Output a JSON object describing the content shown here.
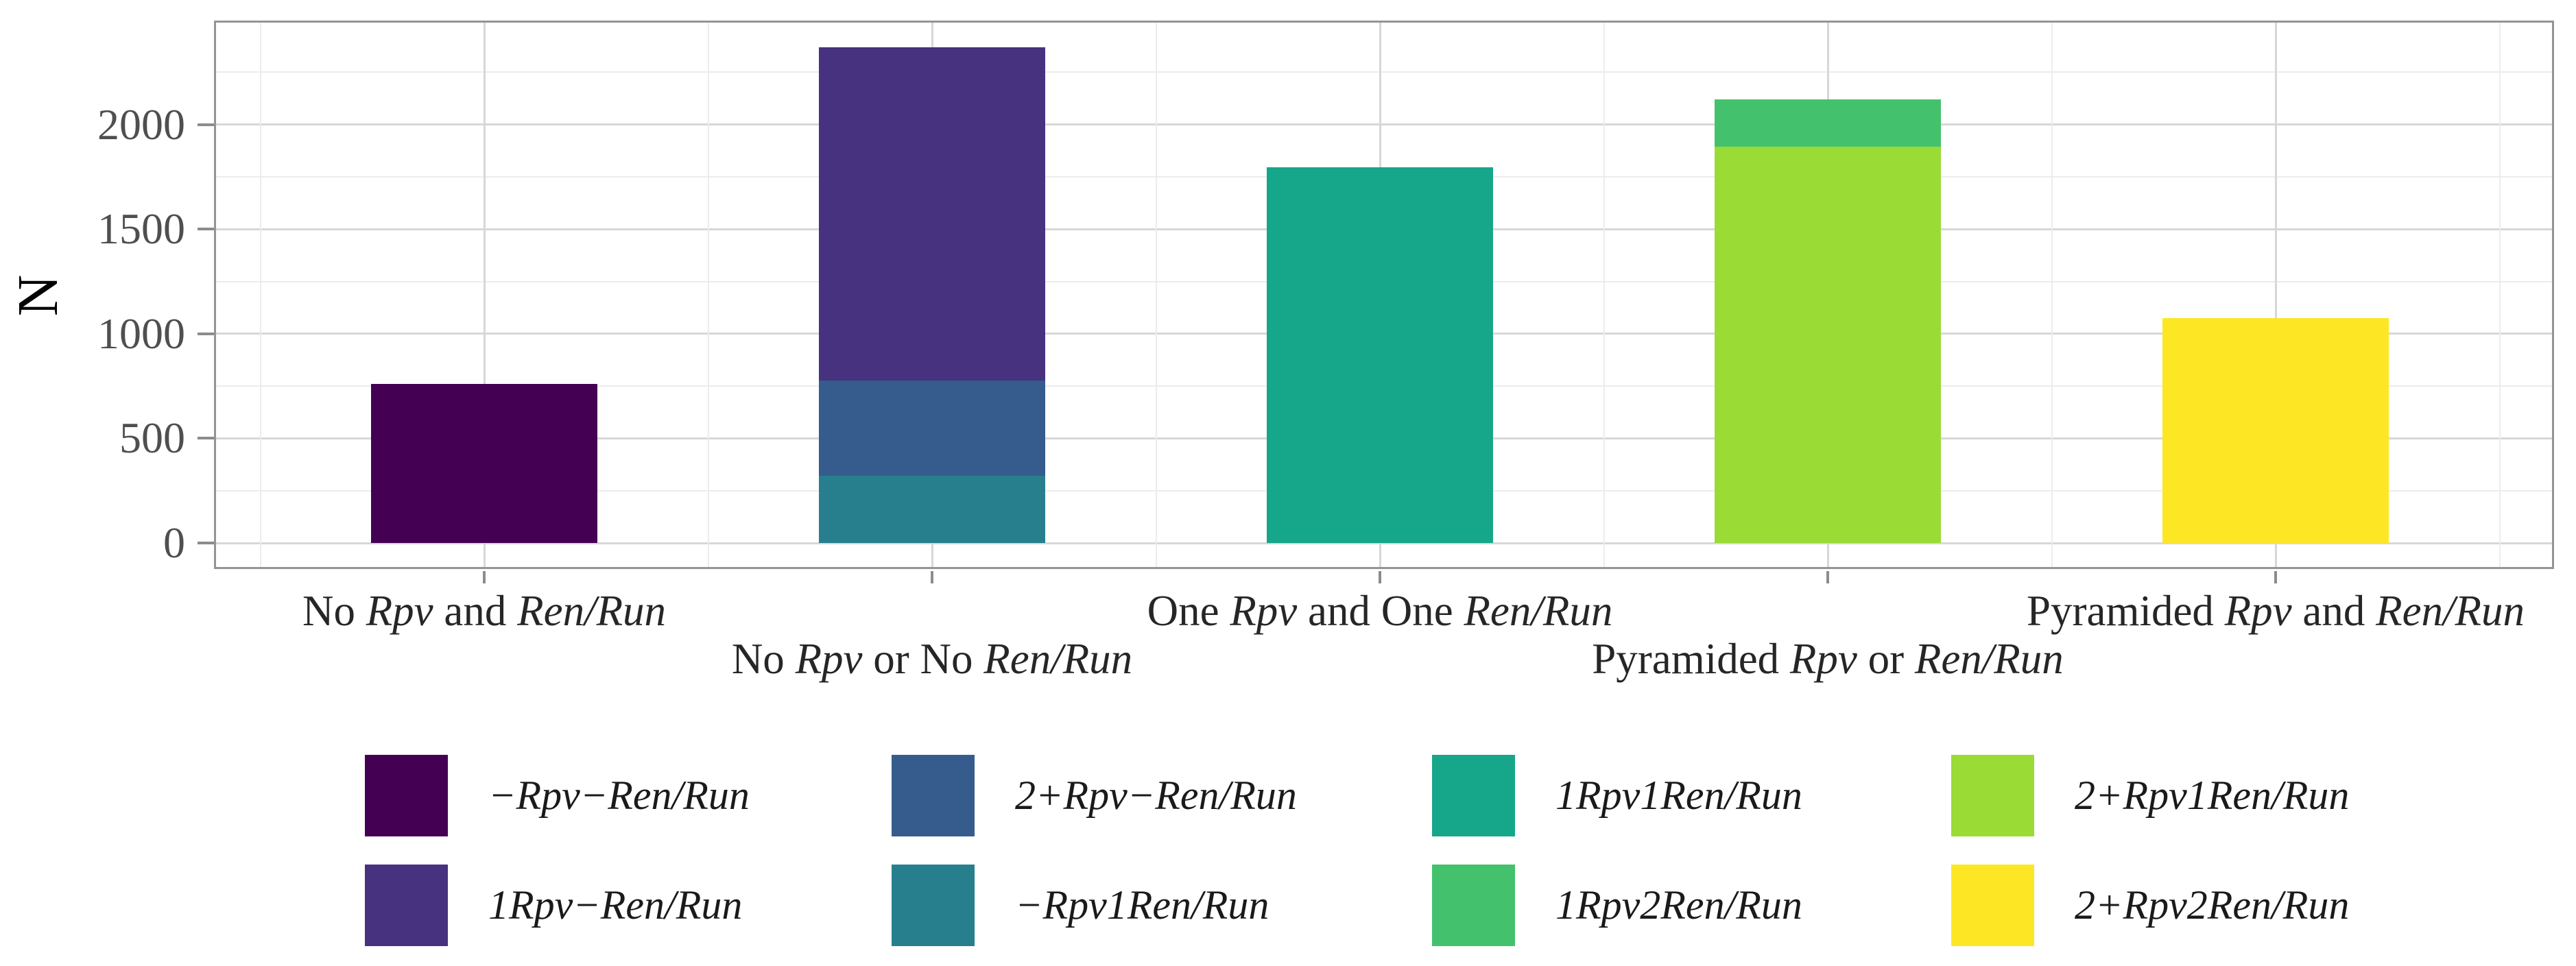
{
  "chart_data": {
    "type": "bar",
    "stacked": true,
    "ylabel": "N",
    "ylim": [
      0,
      2490
    ],
    "yticks": [
      0,
      500,
      1000,
      1500,
      2000
    ],
    "yticks_minor": [
      250,
      750,
      1250,
      1750,
      2250
    ],
    "grid": "horizontal and vertical major+minor light gray gridlines, gray panel border",
    "legend_position": "bottom, 4 columns x 2 rows, filled column-major",
    "categories": [
      "No Rpv and Ren/Run",
      "No Rpv or No Ren/Run",
      "One Rpv and One Ren/Run",
      "Pyramided Rpv or Ren/Run",
      "Pyramided Rpv and Ren/Run"
    ],
    "category_label_row": [
      1,
      2,
      1,
      2,
      1
    ],
    "italic_terms": [
      "Ren/Run",
      "Rpv"
    ],
    "stacking_note": "series listed earlier are drawn at the top of each stack",
    "series": [
      {
        "name": "−Rpv−Ren/Run",
        "color": "#440154",
        "values": [
          760,
          0,
          0,
          0,
          0
        ]
      },
      {
        "name": "1Rpv−Ren/Run",
        "color": "#46327e",
        "values": [
          0,
          1595,
          0,
          0,
          0
        ]
      },
      {
        "name": "2+Rpv−Ren/Run",
        "color": "#365c8d",
        "values": [
          0,
          455,
          0,
          0,
          0
        ]
      },
      {
        "name": "−Rpv1Ren/Run",
        "color": "#277f8e",
        "values": [
          0,
          320,
          0,
          0,
          0
        ]
      },
      {
        "name": "1Rpv1Ren/Run",
        "color": "#16a689",
        "values": [
          0,
          0,
          1795,
          0,
          0
        ]
      },
      {
        "name": "1Rpv2Ren/Run",
        "color": "#44c16d",
        "values": [
          0,
          0,
          0,
          225,
          0
        ]
      },
      {
        "name": "2+Rpv1Ren/Run",
        "color": "#9adb35",
        "values": [
          0,
          0,
          0,
          1895,
          0
        ]
      },
      {
        "name": "2+Rpv2Ren/Run",
        "color": "#fde725",
        "values": [
          0,
          0,
          0,
          0,
          1075
        ]
      }
    ]
  }
}
